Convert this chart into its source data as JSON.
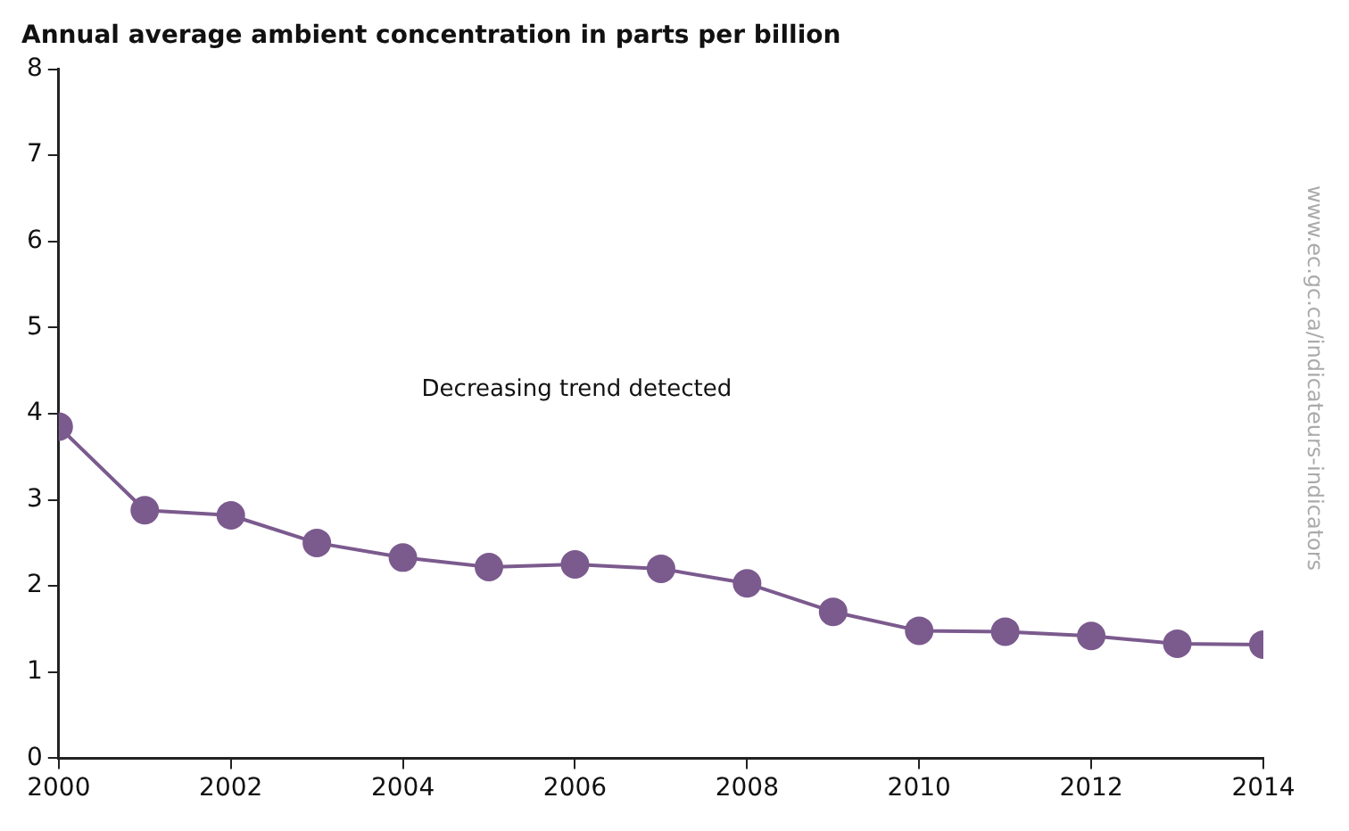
{
  "chart_data": {
    "type": "line",
    "title": "Annual average ambient concentration in parts per billion",
    "x": [
      2000,
      2001,
      2002,
      2003,
      2004,
      2005,
      2006,
      2007,
      2008,
      2009,
      2010,
      2011,
      2012,
      2013,
      2014
    ],
    "series": [
      {
        "color": "#7b5a8e",
        "values": [
          3.85,
          2.88,
          2.82,
          2.5,
          2.33,
          2.22,
          2.25,
          2.2,
          2.03,
          1.7,
          1.48,
          1.47,
          1.42,
          1.33,
          1.32
        ]
      }
    ],
    "xlim": [
      2000,
      2014
    ],
    "xticks": [
      2000,
      2002,
      2004,
      2006,
      2008,
      2010,
      2012,
      2014
    ],
    "ylim": [
      0,
      8
    ],
    "yticks": [
      0,
      1,
      2,
      3,
      4,
      5,
      6,
      7,
      8
    ],
    "grid": false,
    "legend": false,
    "marker": "circle",
    "line_style": "solid",
    "annotations": [
      "Decreasing trend detected",
      "www.ec.gc.ca/indicateurs-indicators"
    ]
  }
}
